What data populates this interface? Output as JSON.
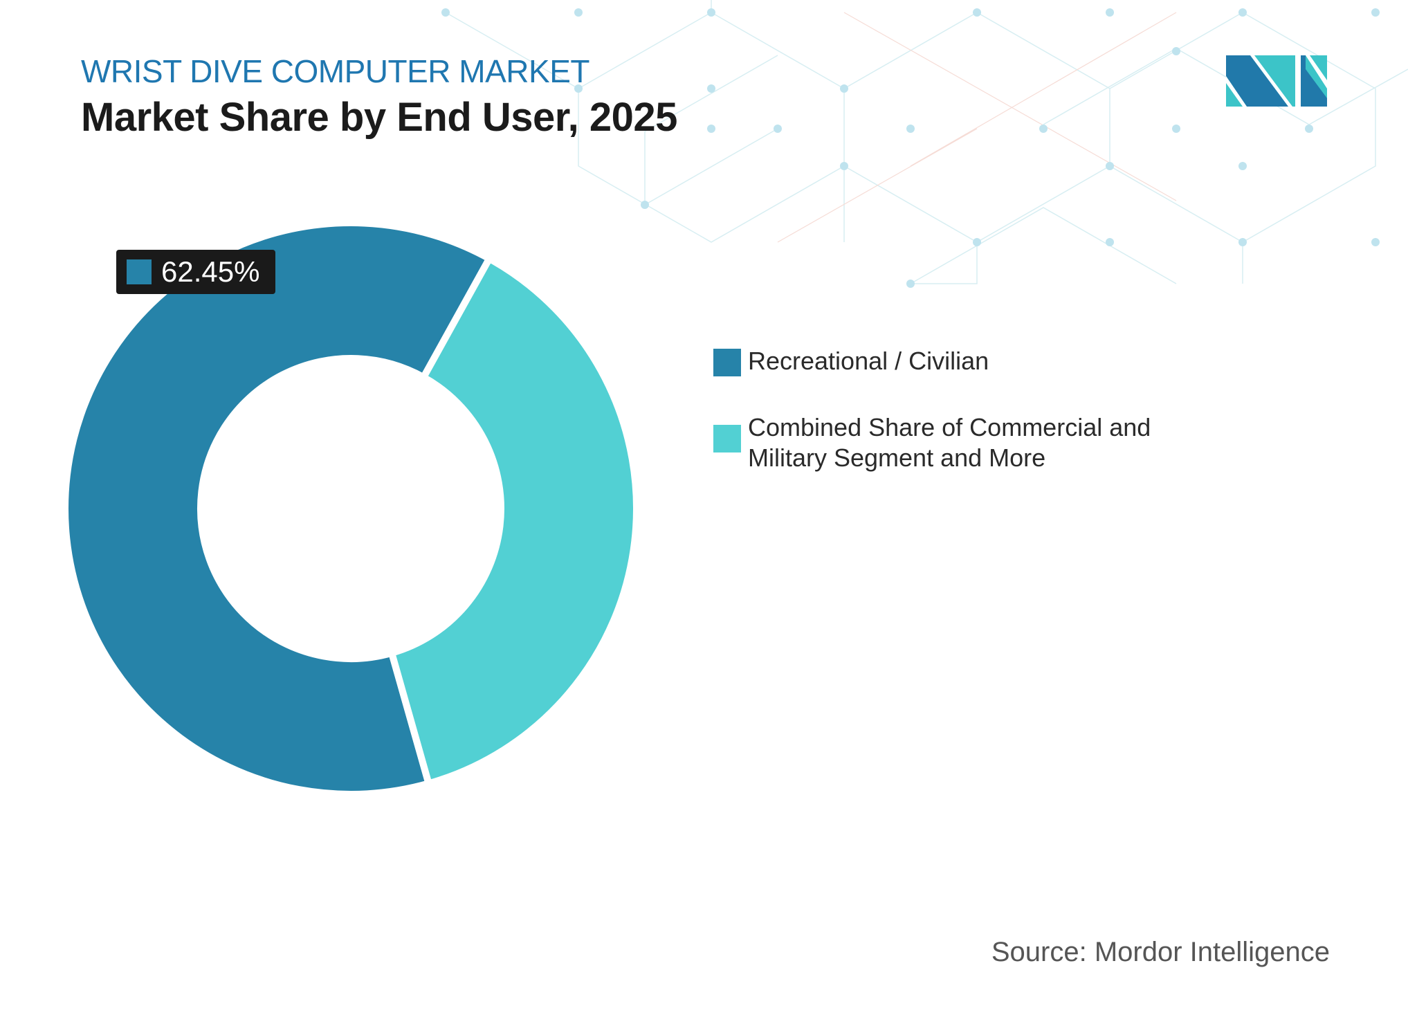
{
  "header": {
    "subtitle": "WRIST DIVE COMPUTER MARKET",
    "title": "Market Share by End User, 2025"
  },
  "chart_data": {
    "type": "pie",
    "variant": "donut",
    "categories": [
      "Recreational / Civilian",
      "Combined Share of Commercial and Military Segment and More"
    ],
    "values": [
      62.45,
      37.55
    ],
    "colors": [
      "#2683a9",
      "#52d0d3"
    ],
    "data_labels": [
      "62.45%"
    ],
    "legend_position": "right"
  },
  "source": "Source: Mordor Intelligence",
  "logo": {
    "colors": [
      "#2179aa",
      "#3cc4c8"
    ]
  }
}
